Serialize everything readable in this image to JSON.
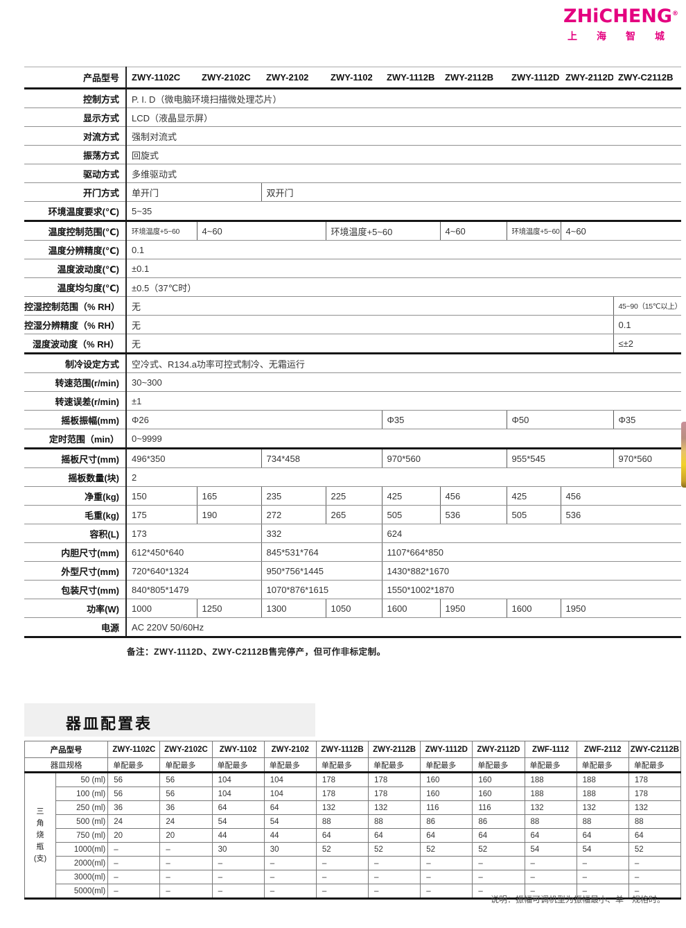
{
  "logo": {
    "en": "ZHiCHENG",
    "reg": "®",
    "cn": [
      "上",
      "海",
      "智",
      "城"
    ],
    "color": "#e4007f"
  },
  "spec_table": {
    "header_label": "产品型号",
    "models": [
      "ZWY-1102C",
      "ZWY-2102C",
      "ZWY-2102",
      "ZWY-1102",
      "ZWY-1112B",
      "ZWY-2112B",
      "ZWY-1112D",
      "ZWY-2112D",
      "ZWY-C2112B"
    ],
    "rows": [
      {
        "label": "控制方式",
        "cells": [
          {
            "t": "P. I. D（微电脑环境扫描微处理芯片）",
            "s": 9
          }
        ]
      },
      {
        "label": "显示方式",
        "cells": [
          {
            "t": "LCD（液晶显示屏）",
            "s": 9
          }
        ]
      },
      {
        "label": "对流方式",
        "cells": [
          {
            "t": "强制对流式",
            "s": 9
          }
        ]
      },
      {
        "label": "振荡方式",
        "cells": [
          {
            "t": "回旋式",
            "s": 9
          }
        ]
      },
      {
        "label": "驱动方式",
        "cells": [
          {
            "t": "多维驱动式",
            "s": 9
          }
        ]
      },
      {
        "label": "开门方式",
        "cells": [
          {
            "t": "单开门",
            "s": 2
          },
          {
            "t": "双开门",
            "s": 7
          }
        ]
      },
      {
        "label": "环境温度要求(℃)",
        "thick": true,
        "cells": [
          {
            "t": "5~35",
            "s": 9
          }
        ]
      },
      {
        "label": "温度控制范围(℃)",
        "cells": [
          {
            "t": "环境温度+5~60",
            "s": 1,
            "sm": true
          },
          {
            "t": "4~60",
            "s": 2
          },
          {
            "t": "环境温度+5~60",
            "s": 2
          },
          {
            "t": "4~60",
            "s": 1
          },
          {
            "t": "环境温度+5~60",
            "s": 1,
            "sm": true
          },
          {
            "t": "4~60",
            "s": 2
          }
        ]
      },
      {
        "label": "温度分辨精度(℃)",
        "cells": [
          {
            "t": "0.1",
            "s": 9
          }
        ]
      },
      {
        "label": "温度波动度(℃)",
        "cells": [
          {
            "t": "±0.1",
            "s": 9
          }
        ]
      },
      {
        "label": "温度均匀度(℃)",
        "cells": [
          {
            "t": "±0.5（37℃时）",
            "s": 9
          }
        ]
      },
      {
        "label": "控湿控制范围（% RH）",
        "cells": [
          {
            "t": "无",
            "s": 8
          },
          {
            "t": "45~90（15℃以上）",
            "s": 1,
            "sm": true
          }
        ]
      },
      {
        "label": "控湿分辨精度（% RH）",
        "cells": [
          {
            "t": "无",
            "s": 8
          },
          {
            "t": "0.1",
            "s": 1
          }
        ]
      },
      {
        "label": "湿度波动度（% RH）",
        "thick": true,
        "cells": [
          {
            "t": "无",
            "s": 8
          },
          {
            "t": "≤±2",
            "s": 1
          }
        ]
      },
      {
        "label": "制冷设定方式",
        "cells": [
          {
            "t": "空冷式、R134.a功率可控式制冷、无霜运行",
            "s": 9
          }
        ]
      },
      {
        "label": "转速范围(r/min)",
        "cells": [
          {
            "t": "30~300",
            "s": 9
          }
        ]
      },
      {
        "label": "转速误差(r/min)",
        "cells": [
          {
            "t": "±1",
            "s": 9
          }
        ]
      },
      {
        "label": "摇板振幅(mm)",
        "cells": [
          {
            "t": "Φ26",
            "s": 4
          },
          {
            "t": "Φ35",
            "s": 2
          },
          {
            "t": "Φ50",
            "s": 2
          },
          {
            "t": "Φ35",
            "s": 1
          }
        ]
      },
      {
        "label": "定时范围（min）",
        "thick": true,
        "cells": [
          {
            "t": "0~9999",
            "s": 9
          }
        ]
      },
      {
        "label": "摇板尺寸(mm)",
        "cells": [
          {
            "t": "496*350",
            "s": 2
          },
          {
            "t": "734*458",
            "s": 2
          },
          {
            "t": "970*560",
            "s": 2
          },
          {
            "t": "955*545",
            "s": 2
          },
          {
            "t": "970*560",
            "s": 1
          }
        ]
      },
      {
        "label": "摇板数量(块)",
        "cells": [
          {
            "t": "2",
            "s": 9
          }
        ]
      },
      {
        "label": "净重(kg)",
        "cells": [
          {
            "t": "150",
            "s": 1
          },
          {
            "t": "165",
            "s": 1
          },
          {
            "t": "235",
            "s": 1
          },
          {
            "t": "225",
            "s": 1
          },
          {
            "t": "425",
            "s": 1
          },
          {
            "t": "456",
            "s": 1
          },
          {
            "t": "425",
            "s": 1
          },
          {
            "t": "456",
            "s": 2
          }
        ]
      },
      {
        "label": "毛重(kg)",
        "cells": [
          {
            "t": "175",
            "s": 1
          },
          {
            "t": "190",
            "s": 1
          },
          {
            "t": "272",
            "s": 1
          },
          {
            "t": "265",
            "s": 1
          },
          {
            "t": "505",
            "s": 1
          },
          {
            "t": "536",
            "s": 1
          },
          {
            "t": "505",
            "s": 1
          },
          {
            "t": "536",
            "s": 2
          }
        ]
      },
      {
        "label": "容积(L)",
        "cells": [
          {
            "t": "173",
            "s": 2
          },
          {
            "t": "332",
            "s": 2
          },
          {
            "t": "624",
            "s": 5
          }
        ]
      },
      {
        "label": "内胆尺寸(mm)",
        "cells": [
          {
            "t": "612*450*640",
            "s": 2
          },
          {
            "t": "845*531*764",
            "s": 2
          },
          {
            "t": "1107*664*850",
            "s": 5
          }
        ]
      },
      {
        "label": "外型尺寸(mm)",
        "cells": [
          {
            "t": "720*640*1324",
            "s": 2
          },
          {
            "t": "950*756*1445",
            "s": 2
          },
          {
            "t": "1430*882*1670",
            "s": 5
          }
        ]
      },
      {
        "label": "包装尺寸(mm)",
        "cells": [
          {
            "t": "840*805*1479",
            "s": 2
          },
          {
            "t": "1070*876*1615",
            "s": 2
          },
          {
            "t": "1550*1002*1870",
            "s": 5
          }
        ]
      },
      {
        "label": "功率(W)",
        "cells": [
          {
            "t": "1000",
            "s": 1
          },
          {
            "t": "1250",
            "s": 1
          },
          {
            "t": "1300",
            "s": 1
          },
          {
            "t": "1050",
            "s": 1
          },
          {
            "t": "1600",
            "s": 1
          },
          {
            "t": "1950",
            "s": 1
          },
          {
            "t": "1600",
            "s": 1
          },
          {
            "t": "1950",
            "s": 2
          }
        ]
      },
      {
        "label": "电源",
        "thick": true,
        "cells": [
          {
            "t": "AC 220V  50/60Hz",
            "s": 9
          }
        ]
      }
    ]
  },
  "notes": {
    "spec_note": "备注：ZWY-1112D、ZWY-C2112B售完停产，但可作非标定制。",
    "footer_note": "说明：振幅可调机型为振幅最小、单一规格时。"
  },
  "vessel": {
    "title": "器皿配置表",
    "header_label": "产品型号",
    "sub_label": "器皿规格",
    "per_model_sub": "单配最多",
    "models": [
      "ZWY-1102C",
      "ZWY-2102C",
      "ZWY-1102",
      "ZWY-2102",
      "ZWY-1112B",
      "ZWY-2112B",
      "ZWY-1112D",
      "ZWY-2112D",
      "ZWF-1112",
      "ZWF-2112",
      "ZWY-C2112B"
    ],
    "group_chars": [
      "三",
      "角",
      "烧",
      "瓶",
      "(支)"
    ],
    "rows": [
      {
        "spec": "50 (ml)",
        "values": [
          "56",
          "56",
          "104",
          "104",
          "178",
          "178",
          "160",
          "160",
          "188",
          "188",
          "178"
        ]
      },
      {
        "spec": "100 (ml)",
        "values": [
          "56",
          "56",
          "104",
          "104",
          "178",
          "178",
          "160",
          "160",
          "188",
          "188",
          "178"
        ]
      },
      {
        "spec": "250 (ml)",
        "values": [
          "36",
          "36",
          "64",
          "64",
          "132",
          "132",
          "116",
          "116",
          "132",
          "132",
          "132"
        ]
      },
      {
        "spec": "500 (ml)",
        "values": [
          "24",
          "24",
          "54",
          "54",
          "88",
          "88",
          "86",
          "86",
          "88",
          "88",
          "88"
        ]
      },
      {
        "spec": "750 (ml)",
        "values": [
          "20",
          "20",
          "44",
          "44",
          "64",
          "64",
          "64",
          "64",
          "64",
          "64",
          "64"
        ]
      },
      {
        "spec": "1000(ml)",
        "values": [
          "–",
          "–",
          "30",
          "30",
          "52",
          "52",
          "52",
          "52",
          "54",
          "54",
          "52"
        ]
      },
      {
        "spec": "2000(ml)",
        "values": [
          "–",
          "–",
          "–",
          "–",
          "–",
          "–",
          "–",
          "–",
          "–",
          "–",
          "–"
        ]
      },
      {
        "spec": "3000(ml)",
        "values": [
          "–",
          "–",
          "–",
          "–",
          "–",
          "–",
          "–",
          "–",
          "–",
          "–",
          "–"
        ]
      },
      {
        "spec": "5000(ml)",
        "values": [
          "–",
          "–",
          "–",
          "–",
          "–",
          "–",
          "–",
          "–",
          "–",
          "–",
          "–"
        ]
      }
    ]
  },
  "colors": {
    "brand": "#e4007f",
    "thick_rule": "#151515",
    "thin_rule": "#8f8f8f"
  }
}
